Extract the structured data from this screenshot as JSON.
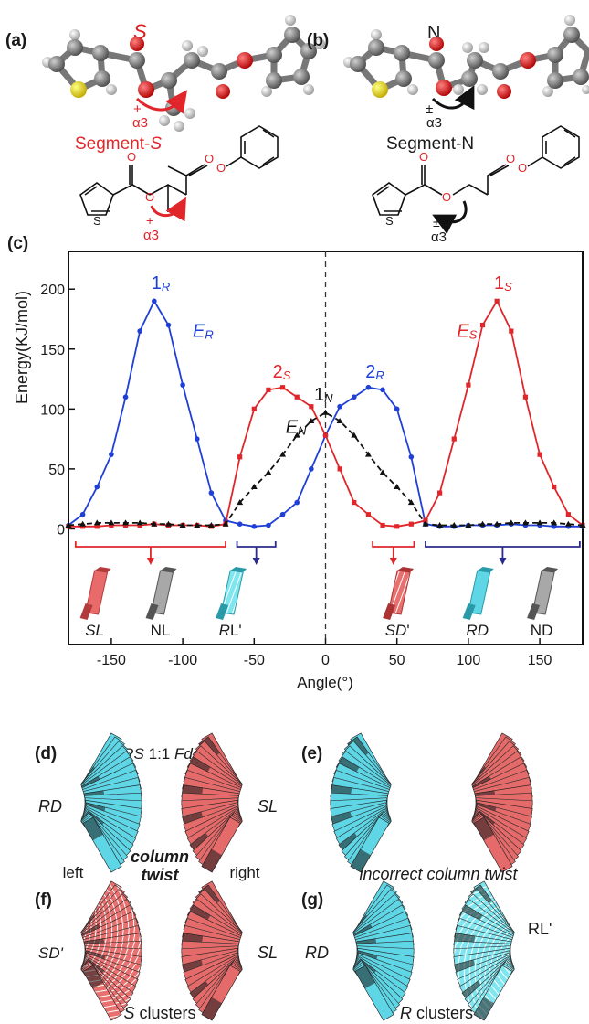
{
  "panels": {
    "a": {
      "letter": "(a)",
      "stereo": "S",
      "angle": "α3",
      "angle_sign": "+",
      "segment_prefix": "Segment-",
      "segment_suffix": "S",
      "angle2": "α3",
      "angle2_sign": "+",
      "ring_atom": "S",
      "oxygen": "O",
      "accent_color": "#e41a1c"
    },
    "b": {
      "letter": "(b)",
      "stereo": "N",
      "angle": "α3",
      "angle_sign": "±",
      "segment": "Segment-N",
      "angle2": "α3",
      "angle2_sign": "±",
      "ring_atom": "S",
      "oxygen": "O"
    },
    "c": {
      "letter": "(c)"
    },
    "d": {
      "letter": "(d)",
      "title_prefix": "RS",
      "title_ratio": "1:1",
      "title_space": "Fddd",
      "label_left": "RD",
      "label_right": "SL",
      "caption_bold_1": "column",
      "caption_bold_2": "twist",
      "caption_left": "left",
      "caption_right": "right"
    },
    "e": {
      "letter": "(e)",
      "caption": "incorrect column twist"
    },
    "f": {
      "letter": "(f)",
      "label_left": "SD'",
      "label_right": "SL",
      "caption_prefix": "S",
      "caption_suffix": " clusters"
    },
    "g": {
      "letter": "(g)",
      "label_left": "RD",
      "label_right": "RL'",
      "caption_prefix": "R",
      "caption_suffix": " clusters"
    }
  },
  "chart_data": {
    "type": "line",
    "xlabel": "Angle(°)",
    "ylabel": "Energy(KJ/mol)",
    "xlim": [
      -180,
      180
    ],
    "ylim": [
      -5,
      220
    ],
    "xticks": [
      -150,
      -100,
      -50,
      0,
      50,
      100,
      150
    ],
    "yticks": [
      0,
      50,
      100,
      150,
      200
    ],
    "grid": false,
    "series": [
      {
        "name": "ER",
        "color": "#1f3fd6",
        "marker": "circle",
        "dash": "solid",
        "x": [
          -180,
          -170,
          -160,
          -150,
          -140,
          -130,
          -120,
          -110,
          -100,
          -90,
          -80,
          -70,
          -60,
          -50,
          -40,
          -30,
          -20,
          -10,
          0,
          10,
          20,
          30,
          40,
          50,
          60,
          70,
          80,
          90,
          100,
          110,
          120,
          130,
          140,
          150,
          160,
          170,
          180
        ],
        "y": [
          3,
          12,
          35,
          62,
          110,
          165,
          190,
          170,
          120,
          75,
          30,
          7,
          4,
          2,
          3,
          12,
          22,
          50,
          78,
          102,
          110,
          118,
          116,
          100,
          60,
          4,
          2,
          2,
          3,
          3,
          3,
          4,
          3,
          3,
          2,
          2,
          2
        ]
      },
      {
        "name": "ES",
        "color": "#e0262b",
        "marker": "square",
        "dash": "solid",
        "x": [
          -180,
          -170,
          -160,
          -150,
          -140,
          -130,
          -120,
          -110,
          -100,
          -90,
          -80,
          -70,
          -60,
          -50,
          -40,
          -30,
          -20,
          -10,
          0,
          10,
          20,
          30,
          40,
          50,
          60,
          70,
          80,
          90,
          100,
          110,
          120,
          130,
          140,
          150,
          160,
          170,
          180
        ],
        "y": [
          2,
          2,
          2,
          3,
          3,
          3,
          4,
          3,
          3,
          3,
          2,
          4,
          60,
          100,
          116,
          118,
          110,
          102,
          78,
          50,
          22,
          12,
          3,
          2,
          4,
          7,
          30,
          75,
          120,
          170,
          190,
          165,
          110,
          62,
          35,
          12,
          3
        ]
      },
      {
        "name": "EN",
        "color": "#111111",
        "marker": "triangle",
        "dash": "dashed",
        "x": [
          -180,
          -170,
          -160,
          -150,
          -140,
          -130,
          -120,
          -110,
          -100,
          -90,
          -80,
          -70,
          -60,
          -50,
          -40,
          -30,
          -20,
          -10,
          0,
          10,
          20,
          30,
          40,
          50,
          60,
          70,
          80,
          90,
          100,
          110,
          120,
          130,
          140,
          150,
          160,
          170,
          180
        ],
        "y": [
          3,
          4,
          5,
          5,
          5,
          5,
          4,
          4,
          3,
          3,
          3,
          4,
          22,
          35,
          47,
          62,
          78,
          90,
          97,
          90,
          78,
          62,
          47,
          35,
          22,
          4,
          3,
          3,
          3,
          4,
          4,
          5,
          5,
          5,
          5,
          4,
          3
        ]
      }
    ],
    "annotations": [
      {
        "text": "1",
        "sub": "R",
        "x": -122,
        "y": 200,
        "color": "#1f3fd6"
      },
      {
        "text": "E",
        "sub": "R",
        "x": -93,
        "y": 160,
        "color": "#1f3fd6",
        "italic": true
      },
      {
        "text": "2",
        "sub": "S",
        "x": -37,
        "y": 126,
        "color": "#e0262b"
      },
      {
        "text": "1",
        "sub": "N",
        "x": -8,
        "y": 107,
        "color": "#111111"
      },
      {
        "text": "E",
        "sub": "N",
        "x": -28,
        "y": 80,
        "color": "#111111",
        "italic": true
      },
      {
        "text": "2",
        "sub": "R",
        "x": 28,
        "y": 126,
        "color": "#1f3fd6"
      },
      {
        "text": "E",
        "sub": "S",
        "x": 92,
        "y": 160,
        "color": "#e0262b",
        "italic": true
      },
      {
        "text": "1",
        "sub": "S",
        "x": 118,
        "y": 200,
        "color": "#e0262b"
      }
    ],
    "ranges": [
      {
        "x0": -175,
        "x1": -70,
        "color": "#e0262b"
      },
      {
        "x0": -62,
        "x1": -35,
        "color": "#2b2b8f"
      },
      {
        "x0": 33,
        "x1": 62,
        "color": "#e0262b"
      },
      {
        "x0": 70,
        "x1": 178,
        "color": "#2b2b8f"
      }
    ],
    "block_labels": [
      {
        "text": "SL",
        "italic_part": "SL",
        "x": -163
      },
      {
        "text": "NL",
        "italic_part": "",
        "x": -117
      },
      {
        "text": "RL'",
        "italic_part": "R",
        "x": -68
      },
      {
        "text": "SD'",
        "italic_part": "SD",
        "x": 49
      },
      {
        "text": "RD",
        "italic_part": "RD",
        "x": 105
      },
      {
        "text": "ND",
        "italic_part": "",
        "x": 150
      }
    ]
  }
}
